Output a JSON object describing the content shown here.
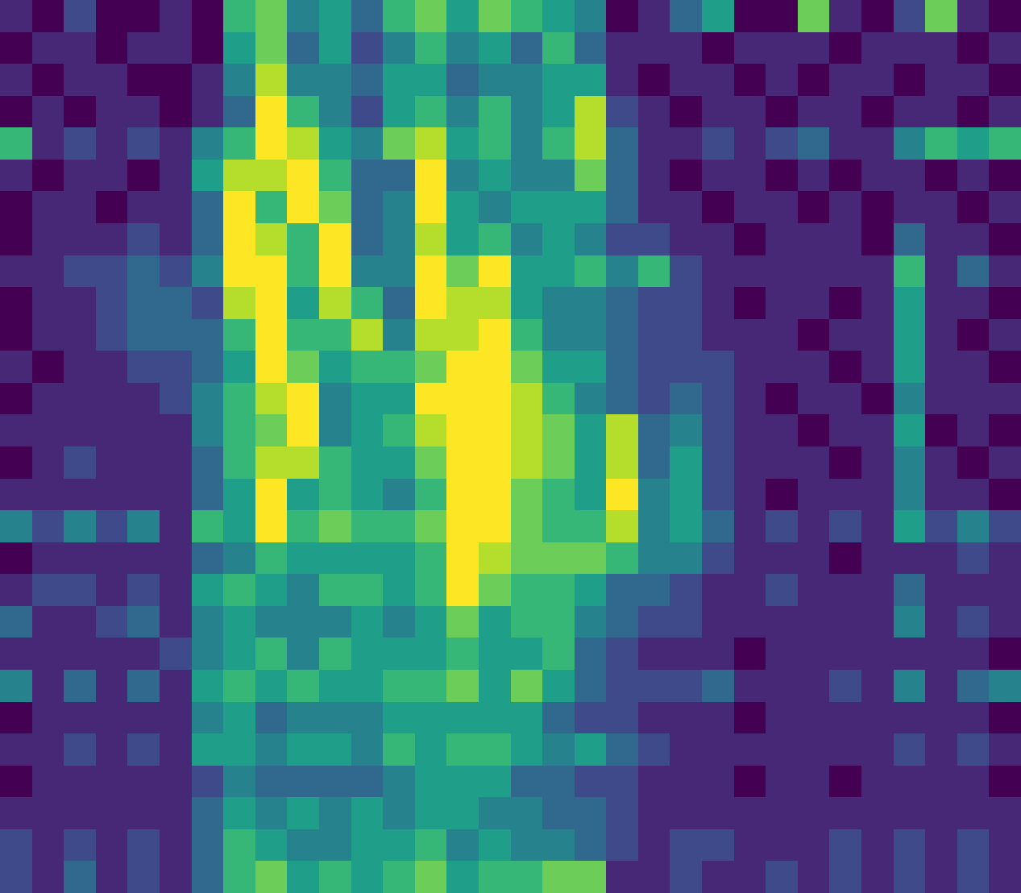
{
  "chart_data": {
    "type": "heatmap",
    "color": "Viridis",
    "tick_labels": false,
    "zlim": [
      0,
      9
    ],
    "cells": [
      [
        1,
        0,
        2,
        0,
        0,
        1,
        0,
        6,
        7,
        4,
        5,
        3,
        6,
        7,
        5,
        7,
        6,
        5,
        4,
        0,
        1,
        3,
        5,
        0,
        0,
        7,
        1,
        0,
        2,
        7,
        1,
        0
      ],
      [
        0,
        1,
        1,
        0,
        1,
        1,
        0,
        5,
        7,
        3,
        5,
        2,
        4,
        6,
        4,
        5,
        3,
        6,
        3,
        1,
        1,
        1,
        0,
        1,
        1,
        1,
        0,
        1,
        1,
        1,
        0,
        1
      ],
      [
        1,
        0,
        1,
        1,
        0,
        0,
        1,
        4,
        8,
        4,
        4,
        3,
        5,
        5,
        3,
        4,
        4,
        5,
        5,
        1,
        0,
        1,
        1,
        0,
        1,
        0,
        1,
        1,
        0,
        1,
        1,
        0
      ],
      [
        0,
        1,
        0,
        1,
        1,
        0,
        1,
        3,
        9,
        6,
        4,
        2,
        5,
        6,
        4,
        6,
        4,
        5,
        8,
        2,
        1,
        0,
        1,
        1,
        0,
        1,
        1,
        0,
        1,
        1,
        0,
        1
      ],
      [
        6,
        1,
        2,
        1,
        2,
        1,
        4,
        6,
        9,
        8,
        5,
        4,
        7,
        8,
        5,
        6,
        4,
        6,
        8,
        3,
        1,
        1,
        2,
        1,
        2,
        3,
        1,
        1,
        4,
        6,
        5,
        6
      ],
      [
        1,
        0,
        1,
        1,
        0,
        1,
        5,
        8,
        8,
        9,
        6,
        3,
        3,
        9,
        4,
        5,
        4,
        4,
        7,
        3,
        1,
        0,
        1,
        1,
        0,
        1,
        0,
        1,
        1,
        0,
        1,
        0
      ],
      [
        0,
        1,
        1,
        0,
        1,
        1,
        3,
        9,
        6,
        9,
        7,
        3,
        4,
        9,
        5,
        4,
        5,
        5,
        5,
        3,
        1,
        1,
        0,
        1,
        1,
        0,
        1,
        0,
        1,
        1,
        0,
        1
      ],
      [
        0,
        1,
        1,
        1,
        2,
        1,
        3,
        9,
        8,
        6,
        9,
        3,
        4,
        8,
        5,
        6,
        4,
        5,
        4,
        2,
        2,
        1,
        1,
        0,
        1,
        1,
        1,
        0,
        3,
        1,
        1,
        0
      ],
      [
        1,
        1,
        2,
        2,
        3,
        2,
        4,
        9,
        9,
        6,
        9,
        4,
        4,
        9,
        7,
        9,
        5,
        5,
        6,
        4,
        6,
        2,
        1,
        1,
        1,
        1,
        1,
        1,
        6,
        1,
        3,
        1
      ],
      [
        0,
        1,
        1,
        2,
        3,
        3,
        2,
        8,
        9,
        5,
        8,
        6,
        3,
        9,
        8,
        8,
        5,
        4,
        4,
        3,
        2,
        2,
        1,
        0,
        1,
        1,
        0,
        1,
        5,
        1,
        1,
        0
      ],
      [
        0,
        1,
        1,
        2,
        3,
        3,
        3,
        6,
        9,
        6,
        6,
        8,
        4,
        8,
        8,
        9,
        6,
        4,
        4,
        3,
        2,
        2,
        1,
        1,
        1,
        0,
        1,
        1,
        5,
        1,
        0,
        1
      ],
      [
        1,
        0,
        1,
        1,
        2,
        2,
        3,
        5,
        9,
        7,
        5,
        6,
        6,
        7,
        9,
        9,
        7,
        5,
        5,
        3,
        2,
        2,
        2,
        1,
        1,
        1,
        0,
        1,
        5,
        1,
        1,
        0
      ],
      [
        0,
        1,
        1,
        1,
        1,
        2,
        4,
        6,
        8,
        9,
        4,
        5,
        5,
        9,
        9,
        9,
        8,
        6,
        4,
        3,
        2,
        3,
        2,
        1,
        0,
        1,
        1,
        0,
        4,
        1,
        1,
        1
      ],
      [
        1,
        1,
        1,
        1,
        1,
        1,
        4,
        6,
        7,
        9,
        4,
        5,
        6,
        8,
        9,
        9,
        8,
        7,
        5,
        8,
        3,
        4,
        2,
        1,
        1,
        0,
        1,
        1,
        5,
        0,
        1,
        0
      ],
      [
        0,
        1,
        2,
        1,
        1,
        1,
        3,
        6,
        8,
        8,
        6,
        5,
        5,
        7,
        9,
        9,
        8,
        7,
        5,
        8,
        3,
        5,
        2,
        1,
        1,
        1,
        0,
        1,
        4,
        1,
        0,
        1
      ],
      [
        1,
        1,
        1,
        1,
        1,
        1,
        3,
        5,
        9,
        5,
        6,
        5,
        4,
        6,
        9,
        9,
        7,
        6,
        5,
        9,
        4,
        5,
        2,
        1,
        0,
        1,
        1,
        1,
        4,
        1,
        1,
        0
      ],
      [
        4,
        2,
        4,
        2,
        4,
        1,
        6,
        5,
        9,
        6,
        7,
        6,
        6,
        7,
        9,
        9,
        7,
        6,
        6,
        8,
        4,
        5,
        3,
        1,
        2,
        1,
        2,
        1,
        5,
        2,
        4,
        2
      ],
      [
        0,
        1,
        1,
        1,
        1,
        1,
        3,
        4,
        6,
        5,
        5,
        5,
        5,
        6,
        9,
        8,
        7,
        7,
        7,
        6,
        4,
        4,
        2,
        1,
        1,
        1,
        0,
        1,
        1,
        1,
        2,
        1
      ],
      [
        1,
        2,
        2,
        1,
        2,
        1,
        5,
        6,
        5,
        4,
        6,
        6,
        5,
        6,
        9,
        7,
        6,
        6,
        5,
        3,
        3,
        2,
        1,
        1,
        2,
        1,
        1,
        1,
        3,
        1,
        1,
        1
      ],
      [
        3,
        1,
        1,
        2,
        3,
        1,
        4,
        5,
        4,
        4,
        4,
        5,
        4,
        5,
        7,
        5,
        6,
        6,
        4,
        3,
        2,
        2,
        1,
        1,
        1,
        1,
        1,
        1,
        4,
        1,
        2,
        1
      ],
      [
        1,
        1,
        1,
        1,
        1,
        2,
        4,
        5,
        6,
        4,
        6,
        5,
        5,
        5,
        6,
        5,
        5,
        6,
        3,
        2,
        1,
        1,
        1,
        0,
        1,
        1,
        1,
        1,
        1,
        1,
        1,
        0
      ],
      [
        4,
        1,
        3,
        1,
        3,
        1,
        5,
        6,
        5,
        6,
        5,
        5,
        6,
        6,
        7,
        5,
        7,
        5,
        3,
        2,
        2,
        2,
        3,
        1,
        1,
        1,
        2,
        1,
        4,
        1,
        3,
        4
      ],
      [
        0,
        1,
        1,
        1,
        1,
        1,
        4,
        5,
        3,
        4,
        4,
        4,
        5,
        5,
        5,
        5,
        5,
        3,
        2,
        2,
        1,
        1,
        1,
        0,
        1,
        1,
        1,
        1,
        1,
        1,
        1,
        0
      ],
      [
        1,
        1,
        2,
        1,
        2,
        1,
        5,
        5,
        4,
        5,
        5,
        4,
        6,
        5,
        6,
        6,
        5,
        4,
        5,
        3,
        2,
        1,
        1,
        1,
        1,
        1,
        1,
        1,
        2,
        1,
        2,
        1
      ],
      [
        0,
        1,
        1,
        1,
        1,
        1,
        2,
        4,
        3,
        3,
        3,
        3,
        4,
        5,
        5,
        5,
        3,
        3,
        2,
        2,
        1,
        1,
        1,
        0,
        1,
        1,
        0,
        1,
        1,
        1,
        1,
        0
      ],
      [
        1,
        1,
        1,
        1,
        1,
        1,
        3,
        5,
        4,
        5,
        4,
        5,
        4,
        5,
        5,
        4,
        4,
        3,
        3,
        2,
        1,
        1,
        1,
        1,
        1,
        1,
        1,
        1,
        1,
        1,
        1,
        1
      ],
      [
        2,
        1,
        2,
        1,
        2,
        1,
        3,
        6,
        5,
        4,
        4,
        5,
        5,
        6,
        4,
        5,
        4,
        4,
        3,
        2,
        1,
        2,
        2,
        1,
        1,
        1,
        2,
        1,
        2,
        1,
        2,
        1
      ],
      [
        2,
        1,
        3,
        1,
        2,
        1,
        3,
        6,
        7,
        5,
        6,
        5,
        6,
        7,
        5,
        6,
        6,
        7,
        7,
        1,
        1,
        2,
        1,
        1,
        2,
        1,
        2,
        1,
        2,
        1,
        2,
        1
      ]
    ]
  }
}
